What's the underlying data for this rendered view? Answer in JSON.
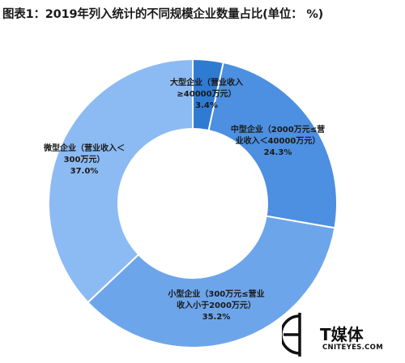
{
  "title": "图表1：2019年列入统计的不同规模企业数量占比(单位： %)",
  "chart_data": {
    "type": "pie",
    "donut": true,
    "start": "top, clockwise",
    "slices": [
      {
        "lines": [
          "大型企业（营业收入",
          "≥40000万元）"
        ],
        "value": 3.4,
        "value_label": "3.4%",
        "color": "#2f7bd2"
      },
      {
        "lines": [
          "中型企业（2000万元≤营",
          "业收入＜40000万元）"
        ],
        "value": 24.3,
        "value_label": "24.3%",
        "color": "#4d8fe0"
      },
      {
        "lines": [
          "小型企业（300万元≤营业",
          "收入小于2000万元）"
        ],
        "value": 35.2,
        "value_label": "35.2%",
        "color": "#6da5ea"
      },
      {
        "lines": [
          "微型企业（营业收入＜",
          "300万元）"
        ],
        "value": 37.0,
        "value_label": "37.0%",
        "color": "#8cbaf2"
      }
    ]
  },
  "watermark": {
    "name": "T媒体",
    "url": "CNITEYES.COM"
  }
}
